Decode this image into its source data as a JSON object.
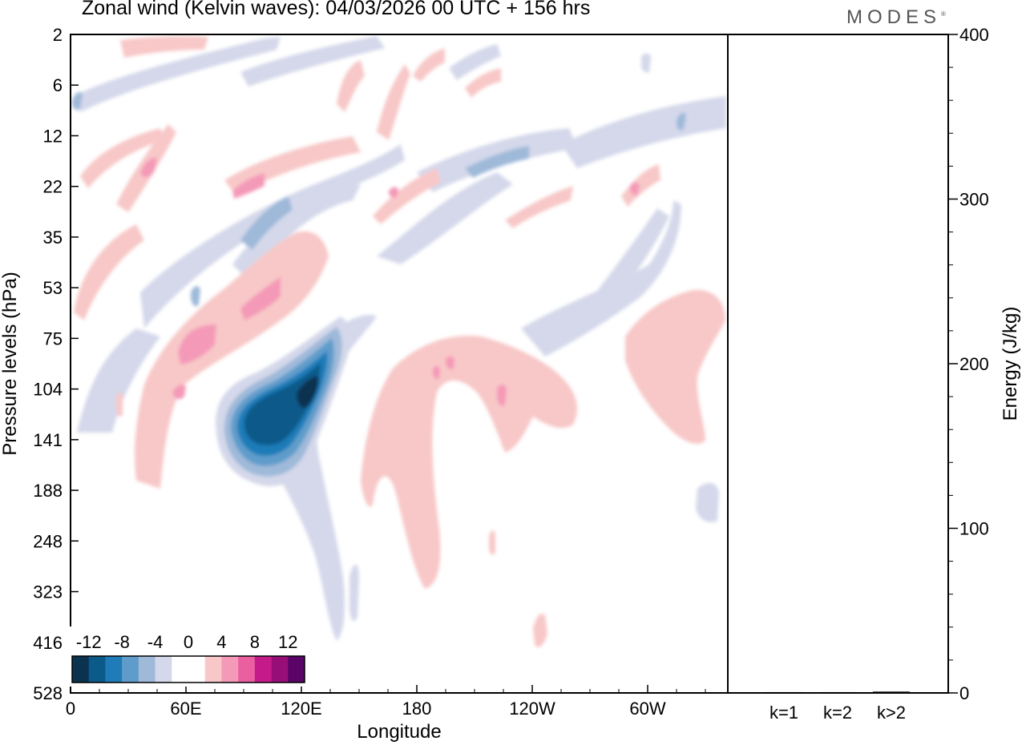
{
  "title": "Zonal wind (Kelvin waves):  04/03/2026  00 UTC  + 156 hrs",
  "brand": "MODES",
  "brand_mark": "®",
  "chart_data": [
    {
      "type": "heatmap",
      "subtype": "filled-contour",
      "variable": "Zonal wind (Kelvin waves)",
      "xlabel": "Longitude",
      "ylabel": "Pressure levels (hPa)",
      "x_ticks": [
        "0",
        "60E",
        "120E",
        "180",
        "120W",
        "60W"
      ],
      "x_tick_degrees": [
        0,
        60,
        120,
        180,
        240,
        300
      ],
      "xlim": [
        0,
        345
      ],
      "y_ticks": [
        "2",
        "6",
        "12",
        "22",
        "35",
        "53",
        "75",
        "104",
        "141",
        "188",
        "248",
        "323",
        "416",
        "528"
      ],
      "y_scale": "model-levels",
      "grid": false,
      "colorbar": {
        "placement": "bottom-left",
        "labels": [
          "-12",
          "-8",
          "-4",
          "0",
          "4",
          "8",
          "12"
        ],
        "colors": [
          "#0b3350",
          "#0c5a8a",
          "#1f7cb8",
          "#5f9ccb",
          "#9fb9d9",
          "#d4d8ea",
          "#ffffff",
          "#ffffff",
          "#f8c8c8",
          "#f49ab8",
          "#ea5f9f",
          "#c51b8a",
          "#980e79",
          "#5a0468"
        ]
      },
      "features": [
        {
          "sign": "negative",
          "min_value": -14,
          "lon_center": 110,
          "pressure_center": 115,
          "description_level": "strongest core"
        },
        {
          "sign": "positive",
          "max_value": 6,
          "lon_center": 215,
          "pressure_center": 140
        },
        {
          "sign": "positive",
          "max_value": 6,
          "lon_center": 75,
          "pressure_center": 60
        }
      ]
    },
    {
      "type": "bar",
      "ylabel": "Energy (J/kg)",
      "categories": [
        "k=1",
        "k=2",
        "k>2"
      ],
      "values": [
        0.5,
        0.5,
        0.8
      ],
      "ylim": [
        0,
        400
      ],
      "y_ticks": [
        "0",
        "100",
        "200",
        "300",
        "400"
      ],
      "grid": false
    }
  ]
}
